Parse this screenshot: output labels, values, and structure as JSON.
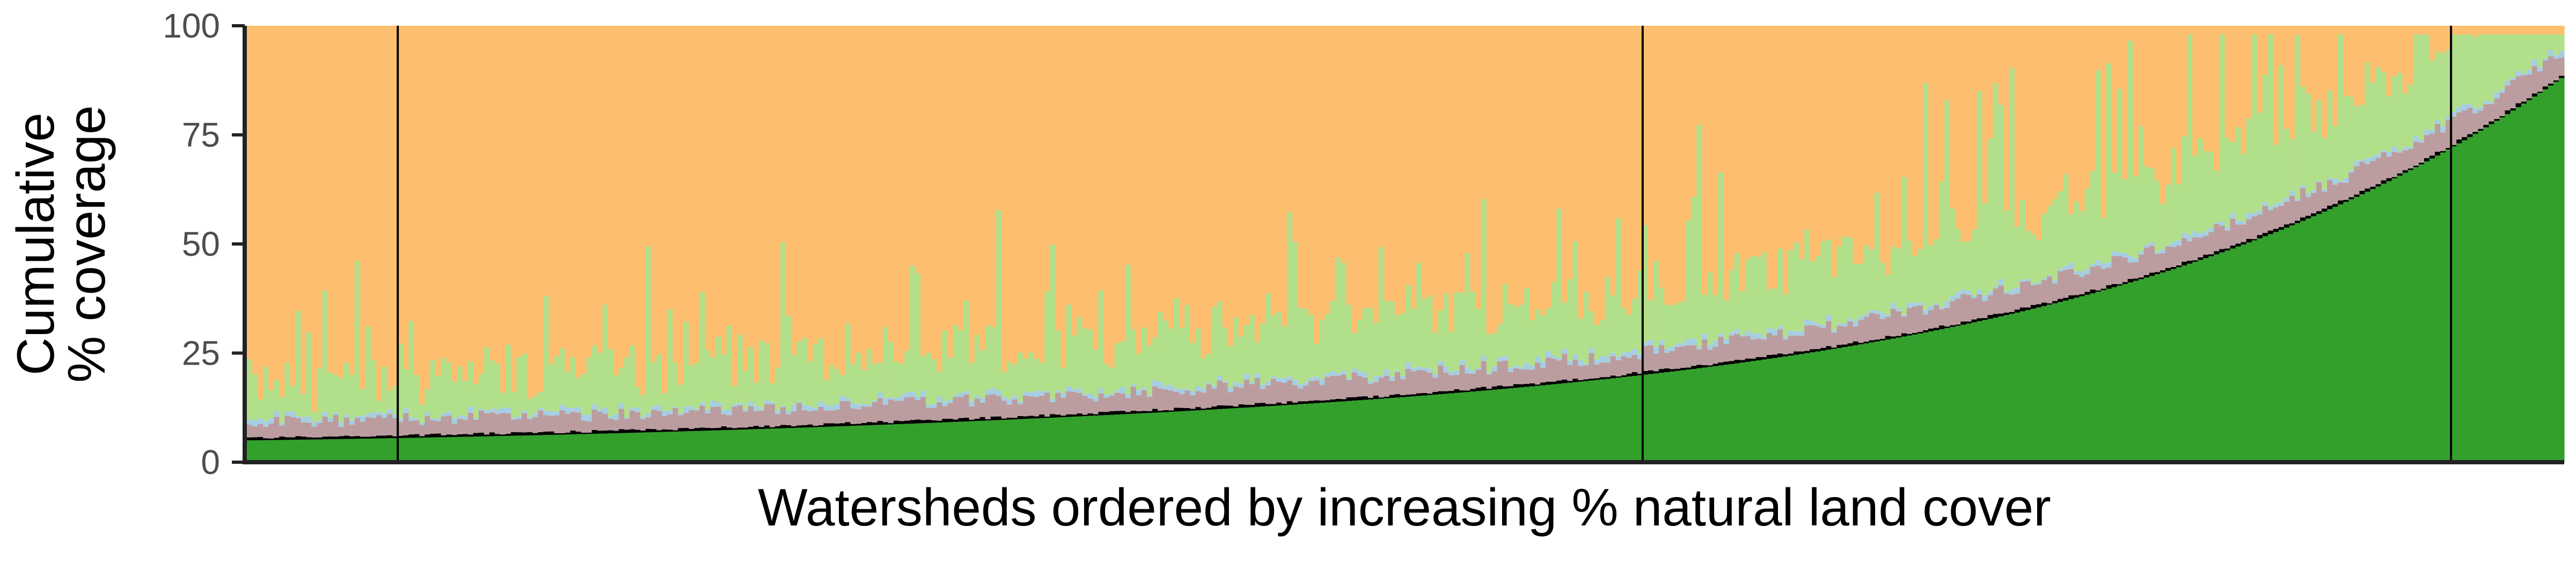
{
  "chart_data": {
    "type": "bar",
    "stacked": true,
    "xlabel": "Watersheds ordered by increasing % natural land cover",
    "ylabel_lines": [
      "Cumulative",
      "% coverage"
    ],
    "ylim": [
      0,
      100
    ],
    "yticks": [
      0,
      25,
      50,
      75,
      100
    ],
    "ytick_labels": [
      "0",
      "25",
      "50",
      "75",
      "100"
    ],
    "grid": false,
    "legend": "none",
    "n_watersheds": 430,
    "group_boundaries_index": [
      28,
      259,
      409
    ],
    "series": [
      {
        "key": "natural",
        "color": "#33a02c",
        "natural_pct_range": [
          5,
          88
        ]
      },
      {
        "key": "other",
        "color": "#000000",
        "typical_pct": 0.5
      },
      {
        "key": "developed",
        "color": "#bc9d9f",
        "typical_pct": 4
      },
      {
        "key": "water",
        "color": "#a6cee3",
        "typical_pct": 1
      },
      {
        "key": "grass",
        "color": "#b2df8a",
        "typical_pct_range": [
          2,
          40
        ]
      },
      {
        "key": "crop",
        "color": "#fdbf6f",
        "role": "remainder to 100"
      }
    ]
  }
}
